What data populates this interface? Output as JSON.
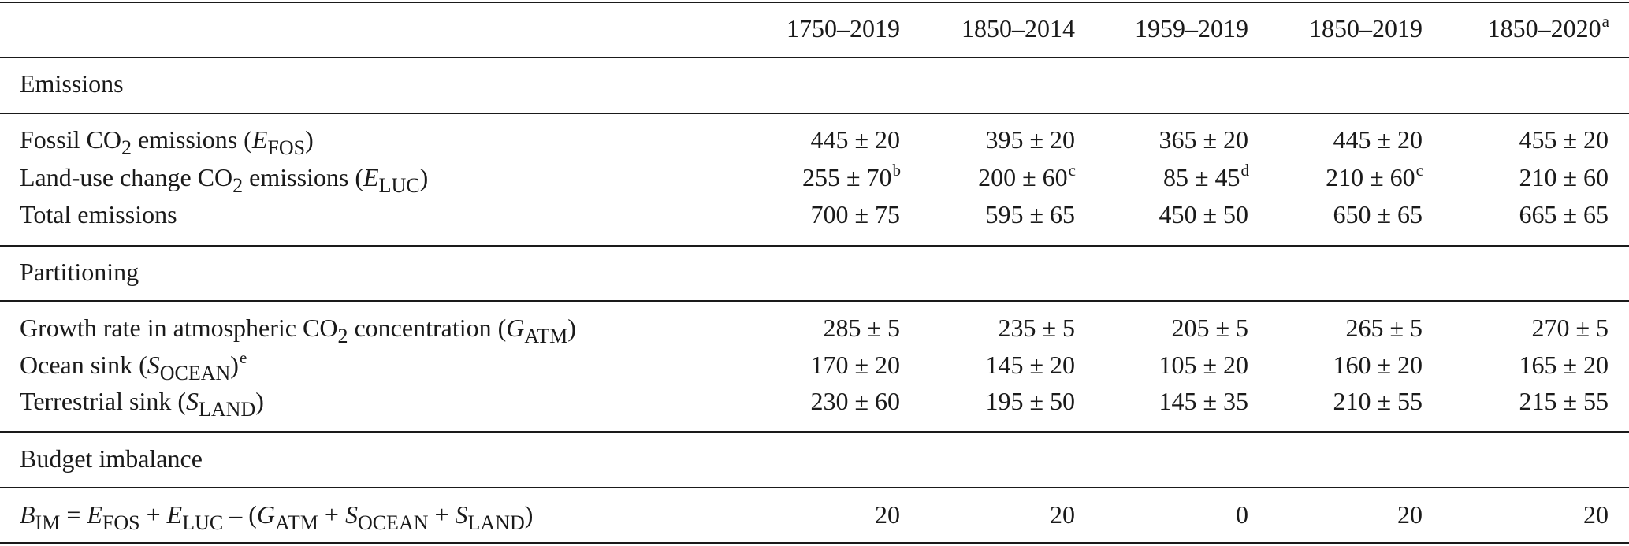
{
  "columns": [
    {
      "label": "1750–2019",
      "note": ""
    },
    {
      "label": "1850–2014",
      "note": ""
    },
    {
      "label": "1959–2019",
      "note": ""
    },
    {
      "label": "1850–2019",
      "note": ""
    },
    {
      "label": "1850–2020",
      "note": "a"
    }
  ],
  "sections": {
    "emissions": "Emissions",
    "partitioning": "Partitioning",
    "imbalance": "Budget imbalance"
  },
  "rows": {
    "fossil": {
      "label_pre": "Fossil CO",
      "label_sub": "2",
      "label_mid": " emissions (",
      "var": "E",
      "var_sub": "FOS",
      "label_post": ")",
      "values": [
        {
          "v": "445 ± 20",
          "note": ""
        },
        {
          "v": "395 ± 20",
          "note": ""
        },
        {
          "v": "365 ± 20",
          "note": ""
        },
        {
          "v": "445 ± 20",
          "note": ""
        },
        {
          "v": "455 ± 20",
          "note": ""
        }
      ]
    },
    "luc": {
      "label_pre": "Land-use change CO",
      "label_sub": "2",
      "label_mid": " emissions (",
      "var": "E",
      "var_sub": "LUC",
      "label_post": ")",
      "values": [
        {
          "v": "255 ± 70",
          "note": "b"
        },
        {
          "v": "200 ± 60",
          "note": "c"
        },
        {
          "v": "85 ± 45",
          "note": "d"
        },
        {
          "v": "210 ± 60",
          "note": "c"
        },
        {
          "v": "210 ± 60",
          "note": ""
        }
      ]
    },
    "total": {
      "label": "Total emissions",
      "values": [
        {
          "v": "700 ± 75",
          "note": ""
        },
        {
          "v": "595 ± 65",
          "note": ""
        },
        {
          "v": "450 ± 50",
          "note": ""
        },
        {
          "v": "650 ± 65",
          "note": ""
        },
        {
          "v": "665 ± 65",
          "note": ""
        }
      ]
    },
    "growth": {
      "label_pre": "Growth rate in atmospheric CO",
      "label_sub": "2",
      "label_mid": " concentration (",
      "var": "G",
      "var_sub": "ATM",
      "label_post": ")",
      "values": [
        {
          "v": "285 ± 5",
          "note": ""
        },
        {
          "v": "235 ± 5",
          "note": ""
        },
        {
          "v": "205 ± 5",
          "note": ""
        },
        {
          "v": "265 ± 5",
          "note": ""
        },
        {
          "v": "270 ± 5",
          "note": ""
        }
      ]
    },
    "ocean": {
      "label_pre": "Ocean sink (",
      "var": "S",
      "var_sub": "OCEAN",
      "label_post": ")",
      "label_note": "e",
      "values": [
        {
          "v": "170 ± 20",
          "note": ""
        },
        {
          "v": "145 ± 20",
          "note": ""
        },
        {
          "v": "105 ± 20",
          "note": ""
        },
        {
          "v": "160 ± 20",
          "note": ""
        },
        {
          "v": "165 ± 20",
          "note": ""
        }
      ]
    },
    "land": {
      "label_pre": "Terrestrial sink (",
      "var": "S",
      "var_sub": "LAND",
      "label_post": ")",
      "values": [
        {
          "v": "230 ± 60",
          "note": ""
        },
        {
          "v": "195 ± 50",
          "note": ""
        },
        {
          "v": "145 ± 35",
          "note": ""
        },
        {
          "v": "210 ± 55",
          "note": ""
        },
        {
          "v": "215 ± 55",
          "note": ""
        }
      ]
    },
    "bim": {
      "eq": {
        "b": "B",
        "b_sub": "IM",
        "eq_sign": " = ",
        "e1": "E",
        "e1_sub": "FOS",
        "plus1": " + ",
        "e2": "E",
        "e2_sub": "LUC",
        "minus": " – (",
        "g": "G",
        "g_sub": "ATM",
        "plus2": " + ",
        "s1": "S",
        "s1_sub": "OCEAN",
        "plus3": " + ",
        "s2": "S",
        "s2_sub": "LAND",
        "close": ")"
      },
      "values": [
        {
          "v": "20",
          "note": ""
        },
        {
          "v": "20",
          "note": ""
        },
        {
          "v": "0",
          "note": ""
        },
        {
          "v": "20",
          "note": ""
        },
        {
          "v": "20",
          "note": ""
        }
      ]
    }
  }
}
